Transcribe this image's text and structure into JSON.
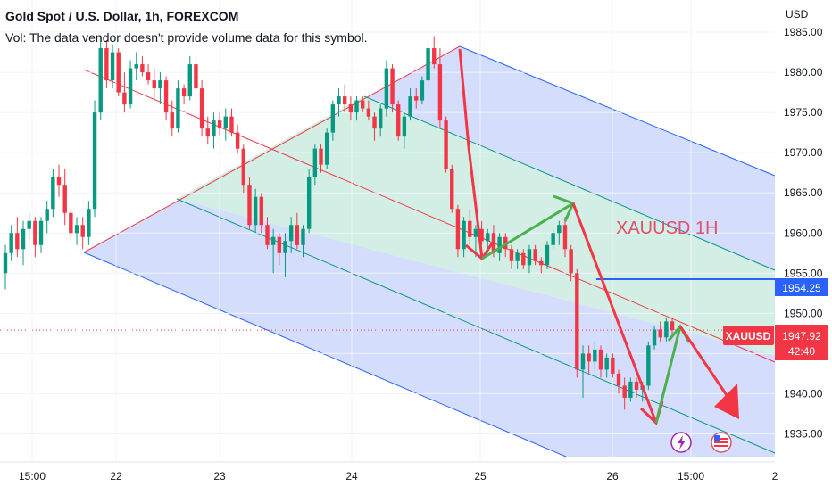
{
  "header": {
    "title": "Gold Spot / U.S. Dollar, 1h, FOREXCOM",
    "volume_note": "Vol: The data vendor doesn't provide volume data for this symbol."
  },
  "axis": {
    "unit": "USD",
    "y_ticks": [
      {
        "value": 1985,
        "label": "1985.00"
      },
      {
        "value": 1980,
        "label": "1980.00"
      },
      {
        "value": 1975,
        "label": "1975.00"
      },
      {
        "value": 1970,
        "label": "1970.00"
      },
      {
        "value": 1965,
        "label": "1965.00"
      },
      {
        "value": 1960,
        "label": "1960.00"
      },
      {
        "value": 1955,
        "label": "1955.00"
      },
      {
        "value": 1950,
        "label": "1950.00"
      },
      {
        "value": 1945,
        "label": "1945.00"
      },
      {
        "value": 1940,
        "label": "1940.00"
      },
      {
        "value": 1935,
        "label": "1935.00"
      }
    ],
    "x_ticks": [
      "15:00",
      "22",
      "23",
      "24",
      "25",
      "26",
      "15:00",
      "2"
    ]
  },
  "annotation": {
    "text": "XAUUSD 1H",
    "color": "#e0506a"
  },
  "price_tag": {
    "symbol": "XAUUSD",
    "price": "1947.92",
    "countdown": "42:40",
    "color": "#f23645"
  },
  "level_tag": {
    "price": "1954.25",
    "color": "#2962ff"
  },
  "colors": {
    "up": "#089981",
    "down": "#f23645",
    "channel_outer": "#cdd8fb",
    "channel_inner": "#d3efe5",
    "arrow_red": "#f23645",
    "arrow_green": "#4caf50"
  },
  "icons": [
    "lightning-icon",
    "us-flag-icon"
  ],
  "chart_data": {
    "type": "candlestick",
    "symbol": "XAUUSD",
    "interval": "1h",
    "ylim": [
      1931.5,
      1989
    ],
    "y_axis": "right",
    "grid": true,
    "candles": [
      [
        1955.0,
        1958.5,
        1953.0,
        1957.5
      ],
      [
        1957.5,
        1961.0,
        1956.5,
        1960.0
      ],
      [
        1960.0,
        1962.0,
        1957.0,
        1958.0
      ],
      [
        1958.0,
        1961.5,
        1956.0,
        1960.5
      ],
      [
        1960.5,
        1962.5,
        1959.0,
        1961.5
      ],
      [
        1961.5,
        1962.0,
        1957.0,
        1958.5
      ],
      [
        1958.5,
        1962.0,
        1957.5,
        1961.5
      ],
      [
        1961.5,
        1964.0,
        1960.0,
        1963.0
      ],
      [
        1963.0,
        1968.0,
        1962.0,
        1967.0
      ],
      [
        1967.0,
        1968.5,
        1964.5,
        1966.0
      ],
      [
        1966.0,
        1968.0,
        1961.0,
        1962.5
      ],
      [
        1962.5,
        1963.0,
        1959.0,
        1960.0
      ],
      [
        1960.0,
        1962.0,
        1958.5,
        1961.0
      ],
      [
        1961.0,
        1962.0,
        1958.0,
        1959.5
      ],
      [
        1959.5,
        1964.0,
        1958.5,
        1963.0
      ],
      [
        1963.0,
        1976.5,
        1962.0,
        1975.0
      ],
      [
        1975.0,
        1984.5,
        1974.0,
        1983.0
      ],
      [
        1983.0,
        1984.0,
        1978.0,
        1979.0
      ],
      [
        1979.0,
        1983.5,
        1978.0,
        1982.5
      ],
      [
        1982.5,
        1983.0,
        1977.0,
        1977.5
      ],
      [
        1977.5,
        1980.0,
        1975.0,
        1976.0
      ],
      [
        1976.0,
        1981.5,
        1975.5,
        1980.5
      ],
      [
        1980.5,
        1982.5,
        1979.0,
        1981.0
      ],
      [
        1981.0,
        1982.0,
        1979.5,
        1980.0
      ],
      [
        1980.0,
        1981.0,
        1978.5,
        1979.0
      ],
      [
        1979.0,
        1980.5,
        1976.5,
        1978.0
      ],
      [
        1978.0,
        1980.0,
        1976.0,
        1979.0
      ],
      [
        1979.0,
        1979.5,
        1974.0,
        1975.0
      ],
      [
        1975.0,
        1976.5,
        1972.0,
        1973.0
      ],
      [
        1973.0,
        1979.0,
        1972.5,
        1978.0
      ],
      [
        1978.0,
        1978.5,
        1976.0,
        1977.0
      ],
      [
        1977.0,
        1982.0,
        1976.5,
        1981.0
      ],
      [
        1981.0,
        1982.5,
        1977.0,
        1978.0
      ],
      [
        1978.0,
        1979.0,
        1972.0,
        1973.0
      ],
      [
        1973.0,
        1974.5,
        1971.0,
        1972.0
      ],
      [
        1972.0,
        1975.0,
        1970.5,
        1974.0
      ],
      [
        1974.0,
        1975.0,
        1972.0,
        1973.0
      ],
      [
        1973.0,
        1975.5,
        1971.5,
        1974.5
      ],
      [
        1974.5,
        1975.5,
        1972.0,
        1972.5
      ],
      [
        1972.5,
        1973.5,
        1970.0,
        1970.5
      ],
      [
        1970.5,
        1971.0,
        1965.0,
        1966.0
      ],
      [
        1966.0,
        1967.0,
        1960.5,
        1961.0
      ],
      [
        1961.0,
        1965.5,
        1960.0,
        1964.5
      ],
      [
        1964.5,
        1965.0,
        1960.0,
        1961.0
      ],
      [
        1961.0,
        1962.0,
        1958.0,
        1958.5
      ],
      [
        1958.5,
        1960.5,
        1955.0,
        1959.5
      ],
      [
        1959.5,
        1960.0,
        1956.0,
        1957.5
      ],
      [
        1957.5,
        1960.0,
        1954.5,
        1959.0
      ],
      [
        1959.0,
        1962.0,
        1957.5,
        1961.0
      ],
      [
        1961.0,
        1962.5,
        1958.0,
        1958.5
      ],
      [
        1958.5,
        1961.0,
        1957.0,
        1960.5
      ],
      [
        1960.5,
        1968.0,
        1960.0,
        1967.0
      ],
      [
        1967.0,
        1971.0,
        1966.0,
        1970.5
      ],
      [
        1970.5,
        1971.0,
        1967.5,
        1968.5
      ],
      [
        1968.5,
        1973.0,
        1968.0,
        1972.5
      ],
      [
        1972.5,
        1976.5,
        1971.5,
        1976.0
      ],
      [
        1976.0,
        1978.0,
        1974.5,
        1977.0
      ],
      [
        1977.0,
        1978.5,
        1975.0,
        1976.0
      ],
      [
        1976.0,
        1977.0,
        1974.0,
        1975.0
      ],
      [
        1975.0,
        1977.0,
        1974.0,
        1976.5
      ],
      [
        1976.5,
        1977.0,
        1975.0,
        1975.5
      ],
      [
        1975.5,
        1976.5,
        1974.0,
        1974.5
      ],
      [
        1974.5,
        1975.0,
        1971.5,
        1973.0
      ],
      [
        1973.0,
        1976.0,
        1972.0,
        1975.5
      ],
      [
        1975.5,
        1981.5,
        1974.5,
        1980.5
      ],
      [
        1980.5,
        1981.0,
        1975.0,
        1976.0
      ],
      [
        1976.0,
        1976.5,
        1971.5,
        1972.0
      ],
      [
        1972.0,
        1975.0,
        1970.5,
        1974.5
      ],
      [
        1974.5,
        1978.0,
        1974.0,
        1977.0
      ],
      [
        1977.0,
        1978.0,
        1975.5,
        1976.5
      ],
      [
        1976.5,
        1979.5,
        1976.0,
        1979.0
      ],
      [
        1979.0,
        1984.0,
        1978.0,
        1983.0
      ],
      [
        1983.0,
        1984.5,
        1980.5,
        1981.0
      ],
      [
        1981.0,
        1983.0,
        1973.0,
        1974.0
      ],
      [
        1974.0,
        1974.5,
        1967.5,
        1968.0
      ],
      [
        1968.0,
        1968.5,
        1962.5,
        1963.0
      ],
      [
        1963.0,
        1963.5,
        1957.0,
        1958.0
      ],
      [
        1958.0,
        1962.0,
        1957.0,
        1961.5
      ],
      [
        1961.5,
        1963.0,
        1958.5,
        1959.5
      ],
      [
        1959.5,
        1961.0,
        1957.0,
        1960.5
      ],
      [
        1960.5,
        1961.5,
        1958.5,
        1959.0
      ],
      [
        1959.0,
        1960.5,
        1957.5,
        1960.0
      ],
      [
        1960.0,
        1961.0,
        1957.0,
        1957.5
      ],
      [
        1957.5,
        1960.0,
        1956.5,
        1959.5
      ],
      [
        1959.5,
        1960.0,
        1957.0,
        1958.0
      ],
      [
        1958.0,
        1958.5,
        1955.5,
        1956.5
      ],
      [
        1956.5,
        1958.0,
        1955.5,
        1957.5
      ],
      [
        1957.5,
        1958.0,
        1955.5,
        1956.0
      ],
      [
        1956.0,
        1958.5,
        1955.0,
        1958.0
      ],
      [
        1958.0,
        1958.5,
        1956.0,
        1956.5
      ],
      [
        1956.5,
        1957.0,
        1955.0,
        1956.0
      ],
      [
        1956.0,
        1959.0,
        1955.5,
        1958.5
      ],
      [
        1958.5,
        1960.5,
        1958.0,
        1960.0
      ],
      [
        1960.0,
        1961.5,
        1958.5,
        1961.0
      ],
      [
        1961.0,
        1962.0,
        1957.0,
        1958.0
      ],
      [
        1958.0,
        1958.5,
        1954.0,
        1955.0
      ],
      [
        1955.0,
        1955.5,
        1942.0,
        1943.0
      ],
      [
        1943.0,
        1946.0,
        1939.5,
        1945.0
      ],
      [
        1945.0,
        1946.0,
        1942.5,
        1944.0
      ],
      [
        1944.0,
        1946.5,
        1943.0,
        1945.5
      ],
      [
        1945.5,
        1946.0,
        1942.0,
        1943.0
      ],
      [
        1943.0,
        1945.0,
        1942.0,
        1944.5
      ],
      [
        1944.5,
        1945.0,
        1942.0,
        1942.5
      ],
      [
        1942.5,
        1943.0,
        1940.0,
        1941.0
      ],
      [
        1941.0,
        1942.0,
        1938.0,
        1939.5
      ],
      [
        1939.5,
        1942.0,
        1939.0,
        1941.5
      ],
      [
        1941.5,
        1942.0,
        1939.5,
        1940.5
      ],
      [
        1940.5,
        1941.5,
        1939.0,
        1941.0
      ],
      [
        1941.0,
        1946.5,
        1940.5,
        1946.0
      ],
      [
        1946.0,
        1948.5,
        1945.5,
        1948.0
      ],
      [
        1948.0,
        1949.0,
        1946.5,
        1947.0
      ],
      [
        1947.0,
        1949.5,
        1946.5,
        1949.0
      ],
      [
        1949.0,
        1949.5,
        1947.0,
        1947.92
      ]
    ],
    "horizontal_line": 1954.25,
    "last_price": 1947.92
  }
}
